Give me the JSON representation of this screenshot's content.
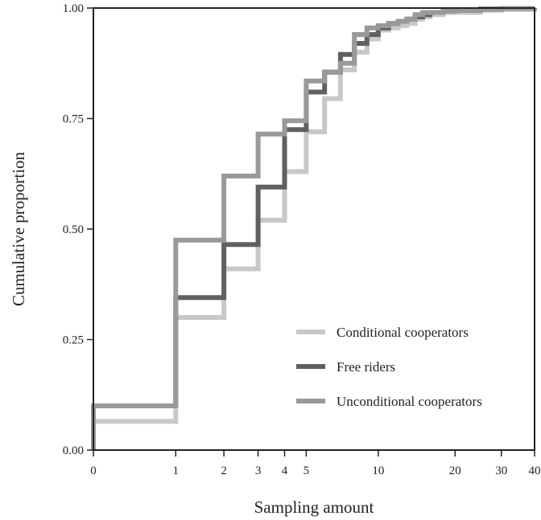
{
  "chart_data": {
    "type": "line",
    "step": true,
    "xlabel": "Sampling amount",
    "ylabel": "Cumulative proportion",
    "xscale": "log(x+1)",
    "xlim": [
      0,
      40
    ],
    "ylim": [
      0,
      1
    ],
    "xticks": [
      0,
      1,
      2,
      3,
      4,
      5,
      10,
      20,
      30,
      40
    ],
    "xtick_labels": [
      "0",
      "1",
      "2",
      "3",
      "4",
      "5",
      "10",
      "20",
      "30",
      "40"
    ],
    "yticks": [
      0,
      0.25,
      0.5,
      0.75,
      1.0
    ],
    "ytick_labels": [
      "0.00",
      "0.25",
      "0.50",
      "0.75",
      "1.00"
    ],
    "grid": false,
    "legend_position": "bottom-right",
    "series": [
      {
        "name": "Conditional cooperators",
        "color": "#c8c8c8",
        "points": [
          [
            0,
            0.065
          ],
          [
            1,
            0.3
          ],
          [
            2,
            0.41
          ],
          [
            3,
            0.52
          ],
          [
            4,
            0.63
          ],
          [
            5,
            0.72
          ],
          [
            6,
            0.795
          ],
          [
            7,
            0.86
          ],
          [
            8,
            0.9
          ],
          [
            9,
            0.93
          ],
          [
            10,
            0.95
          ],
          [
            11,
            0.955
          ],
          [
            12,
            0.96
          ],
          [
            13,
            0.965
          ],
          [
            14,
            0.975
          ],
          [
            15,
            0.98
          ],
          [
            16,
            0.985
          ],
          [
            18,
            0.99
          ],
          [
            20,
            0.99
          ],
          [
            25,
            0.995
          ],
          [
            30,
            0.997
          ],
          [
            40,
            1.0
          ]
        ]
      },
      {
        "name": "Free riders",
        "color": "#606060",
        "points": [
          [
            0,
            0.1
          ],
          [
            1,
            0.345
          ],
          [
            2,
            0.465
          ],
          [
            3,
            0.595
          ],
          [
            4,
            0.725
          ],
          [
            5,
            0.81
          ],
          [
            6,
            0.855
          ],
          [
            7,
            0.895
          ],
          [
            8,
            0.92
          ],
          [
            9,
            0.94
          ],
          [
            10,
            0.955
          ],
          [
            11,
            0.965
          ],
          [
            12,
            0.97
          ],
          [
            13,
            0.975
          ],
          [
            14,
            0.98
          ],
          [
            15,
            0.985
          ],
          [
            16,
            0.99
          ],
          [
            18,
            0.995
          ],
          [
            20,
            0.995
          ],
          [
            25,
            0.998
          ],
          [
            30,
            0.999
          ],
          [
            40,
            1.0
          ]
        ]
      },
      {
        "name": "Unconditional cooperators",
        "color": "#999999",
        "points": [
          [
            0,
            0.1
          ],
          [
            1,
            0.475
          ],
          [
            2,
            0.62
          ],
          [
            3,
            0.715
          ],
          [
            4,
            0.745
          ],
          [
            5,
            0.835
          ],
          [
            6,
            0.855
          ],
          [
            7,
            0.875
          ],
          [
            8,
            0.94
          ],
          [
            9,
            0.955
          ],
          [
            10,
            0.96
          ],
          [
            11,
            0.965
          ],
          [
            12,
            0.97
          ],
          [
            13,
            0.975
          ],
          [
            14,
            0.985
          ],
          [
            15,
            0.99
          ],
          [
            16,
            0.99
          ],
          [
            18,
            0.993
          ],
          [
            20,
            0.995
          ],
          [
            25,
            0.997
          ],
          [
            30,
            0.999
          ],
          [
            40,
            1.0
          ]
        ]
      }
    ]
  }
}
